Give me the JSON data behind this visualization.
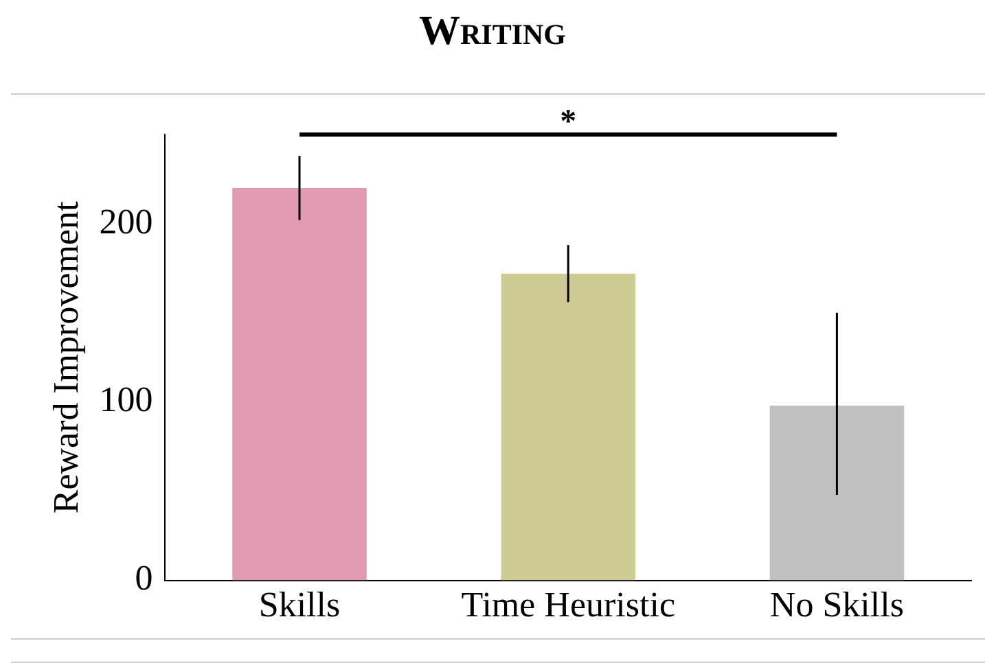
{
  "chart_data": {
    "type": "bar",
    "title": "Writing",
    "ylabel": "Reward Improvement",
    "categories": [
      "Skills",
      "Time Heuristic",
      "No Skills"
    ],
    "values": [
      220,
      172,
      98
    ],
    "colors": [
      "#e29bb3",
      "#cfcb94",
      "#c0c0c0"
    ],
    "errors": [
      [
        202,
        238
      ],
      [
        156,
        188
      ],
      [
        48,
        150
      ]
    ],
    "ylim": [
      0,
      250
    ],
    "yticks": [
      0,
      100,
      200
    ],
    "grid": false,
    "legend": false,
    "annotations": [
      "*"
    ]
  }
}
